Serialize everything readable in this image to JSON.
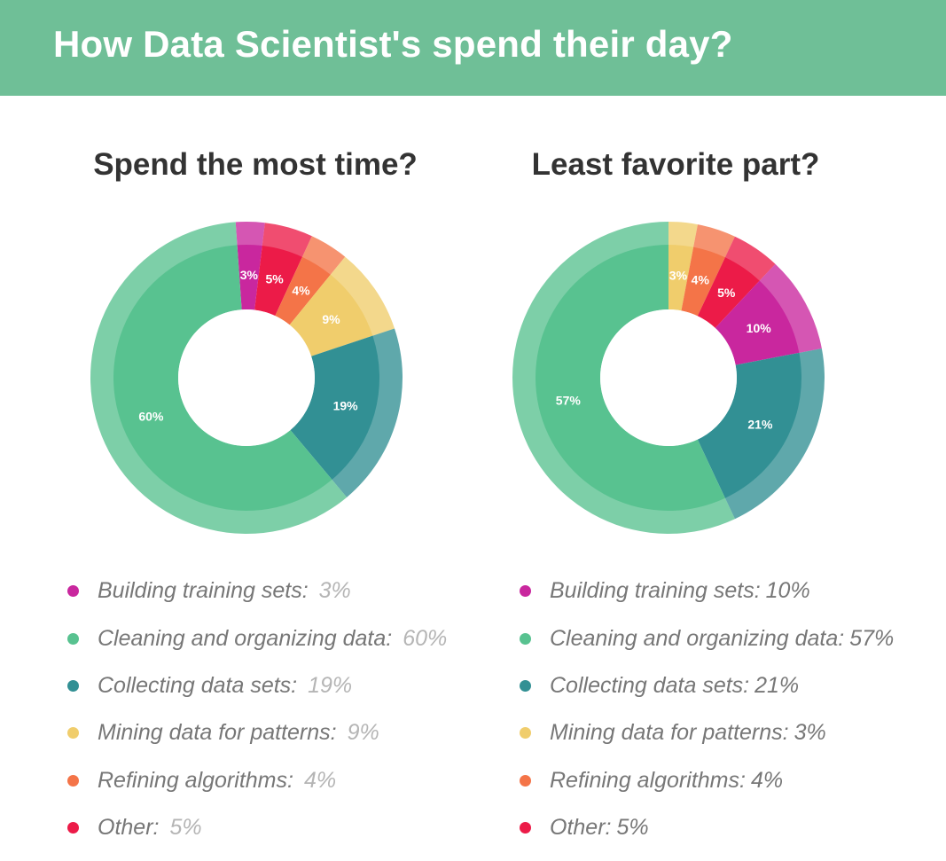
{
  "header": {
    "title": "How Data Scientist's spend their day?"
  },
  "colors": {
    "banner": "#6fbf97",
    "building": "#c9279e",
    "cleaning": "#58c290",
    "collecting": "#329094",
    "mining": "#f0cd6c",
    "refining": "#f47448",
    "other": "#ec1b48"
  },
  "chart_data": [
    {
      "type": "pie",
      "title": "Spend the most time?",
      "start_angle_deg": -4,
      "slices": [
        {
          "label": "Building training sets:",
          "value_text": "3%",
          "value": 3,
          "color_key": "building"
        },
        {
          "label": "Other:",
          "value_text": "5%",
          "value": 5,
          "color_key": "other"
        },
        {
          "label": "Refining algorithms:",
          "value_text": "4%",
          "value": 4,
          "color_key": "refining"
        },
        {
          "label": "Mining data for patterns:",
          "value_text": "9%",
          "value": 9,
          "color_key": "mining"
        },
        {
          "label": "Collecting data sets:",
          "value_text": "19%",
          "value": 19,
          "color_key": "collecting"
        },
        {
          "label": "Cleaning and organizing data:",
          "value_text": "60%",
          "value": 60,
          "color_key": "cleaning"
        }
      ],
      "legend_order": [
        "Building training sets:",
        "Cleaning and organizing data:",
        "Collecting data sets:",
        "Mining data for patterns:",
        "Refining algorithms:",
        "Other:"
      ]
    },
    {
      "type": "pie",
      "title": "Least favorite part?",
      "start_angle_deg": 0,
      "slices": [
        {
          "label": "Mining data for patterns:",
          "value_text": "3%",
          "value": 3,
          "color_key": "mining"
        },
        {
          "label": "Refining algorithms:",
          "value_text": "4%",
          "value": 4,
          "color_key": "refining"
        },
        {
          "label": "Other:",
          "value_text": "5%",
          "value": 5,
          "color_key": "other"
        },
        {
          "label": "Building training sets:",
          "value_text": "10%",
          "value": 10,
          "color_key": "building"
        },
        {
          "label": "Collecting data sets:",
          "value_text": "21%",
          "value": 21,
          "color_key": "collecting"
        },
        {
          "label": "Cleaning and organizing data:",
          "value_text": "57%",
          "value": 57,
          "color_key": "cleaning"
        }
      ],
      "legend_order": [
        "Building training sets:",
        "Cleaning and organizing data:",
        "Collecting data sets:",
        "Mining data for patterns:",
        "Refining algorithms:",
        "Other:"
      ]
    }
  ]
}
